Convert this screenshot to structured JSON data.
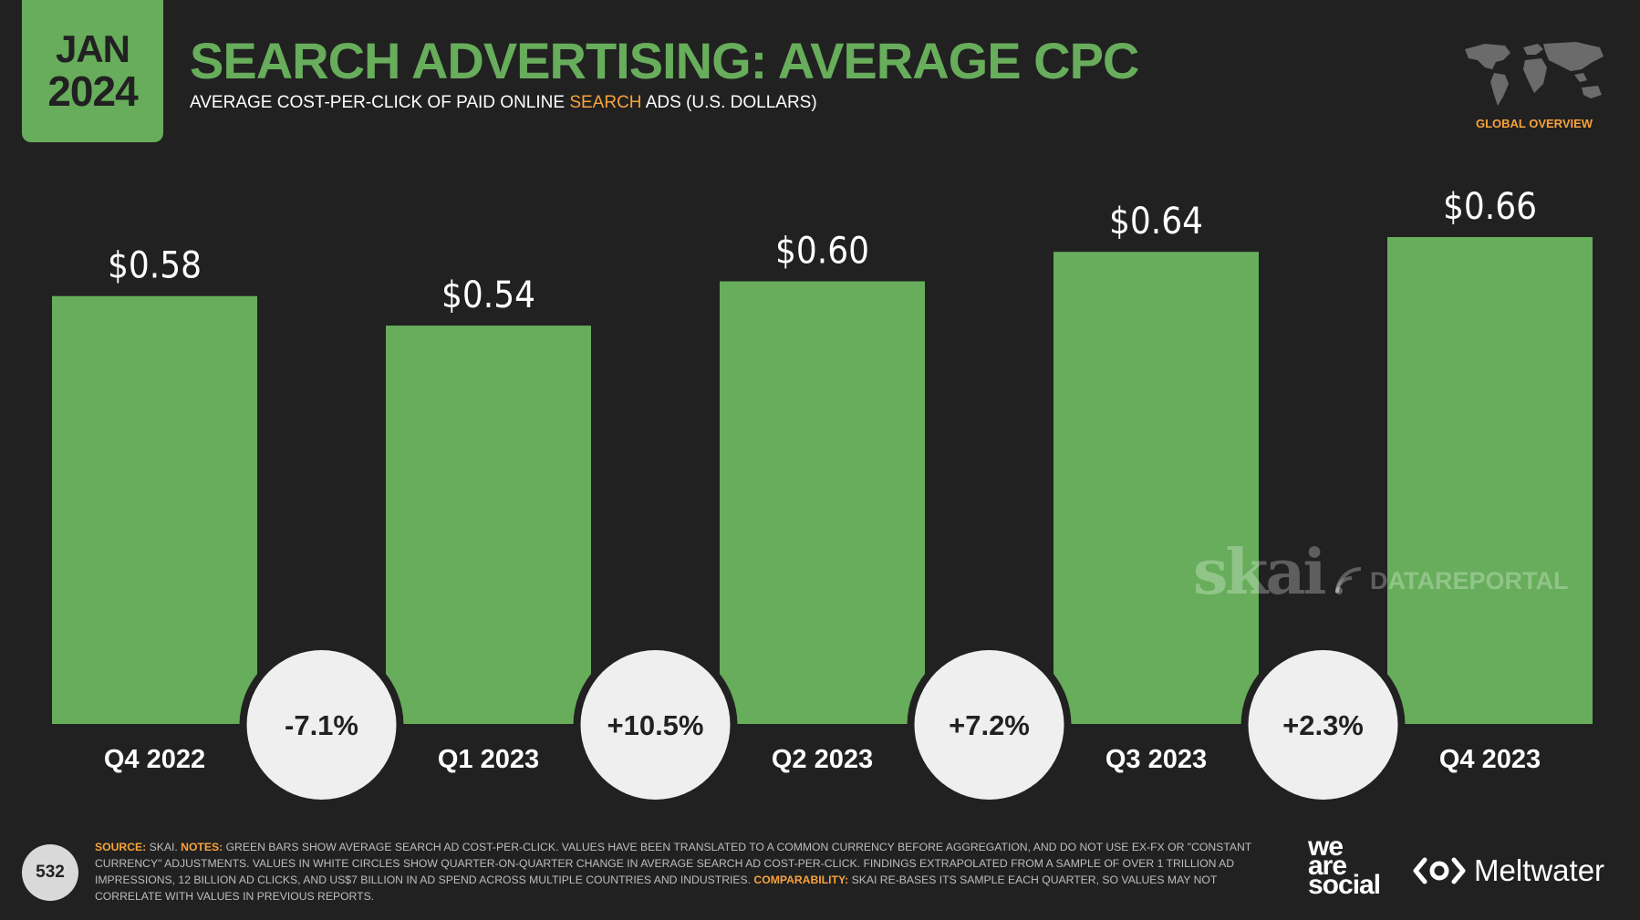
{
  "header": {
    "month": "JAN",
    "year": "2024",
    "title": "SEARCH ADVERTISING: AVERAGE CPC",
    "subtitle_before": "AVERAGE COST-PER-CLICK OF PAID ONLINE ",
    "subtitle_highlight": "SEARCH",
    "subtitle_after": " ADS (U.S. DOLLARS)",
    "global_overview": "GLOBAL OVERVIEW"
  },
  "chart_data": {
    "type": "bar",
    "categories": [
      "Q4 2022",
      "Q1 2023",
      "Q2 2023",
      "Q3 2023",
      "Q4 2023"
    ],
    "values": [
      0.58,
      0.54,
      0.6,
      0.64,
      0.66
    ],
    "value_labels": [
      "$0.58",
      "$0.54",
      "$0.60",
      "$0.64",
      "$0.66"
    ],
    "changes": [
      "-7.1%",
      "+10.5%",
      "+7.2%",
      "+2.3%"
    ],
    "ylim": [
      0,
      0.66
    ],
    "bar_color": "#67ad5b",
    "circle_color": "#efefef",
    "grid": false
  },
  "watermarks": {
    "skai": "skai",
    "datareportal": "DATAREPORTAL"
  },
  "footer": {
    "page_number": "532",
    "source_label": "SOURCE:",
    "source_text": " SKAI. ",
    "notes_label": "NOTES:",
    "notes_text": " GREEN BARS SHOW AVERAGE SEARCH AD COST-PER-CLICK. VALUES HAVE BEEN TRANSLATED TO A COMMON CURRENCY BEFORE AGGREGATION, AND DO NOT USE EX-FX OR \"CONSTANT CURRENCY\" ADJUSTMENTS. VALUES IN WHITE CIRCLES SHOW QUARTER-ON-QUARTER CHANGE IN AVERAGE SEARCH AD COST-PER-CLICK. FINDINGS EXTRAPOLATED FROM A SAMPLE OF OVER 1 TRILLION AD IMPRESSIONS, 12 BILLION AD CLICKS, AND US$7 BILLION IN AD SPEND ACROSS MULTIPLE COUNTRIES AND INDUSTRIES. ",
    "comparability_label": "COMPARABILITY:",
    "comparability_text": " SKAI RE-BASES ITS SAMPLE EACH QUARTER, SO VALUES MAY NOT CORRELATE WITH VALUES IN PREVIOUS REPORTS.",
    "logo_we": "we",
    "logo_are": "are",
    "logo_social": "social",
    "logo_meltwater": "Meltwater"
  }
}
